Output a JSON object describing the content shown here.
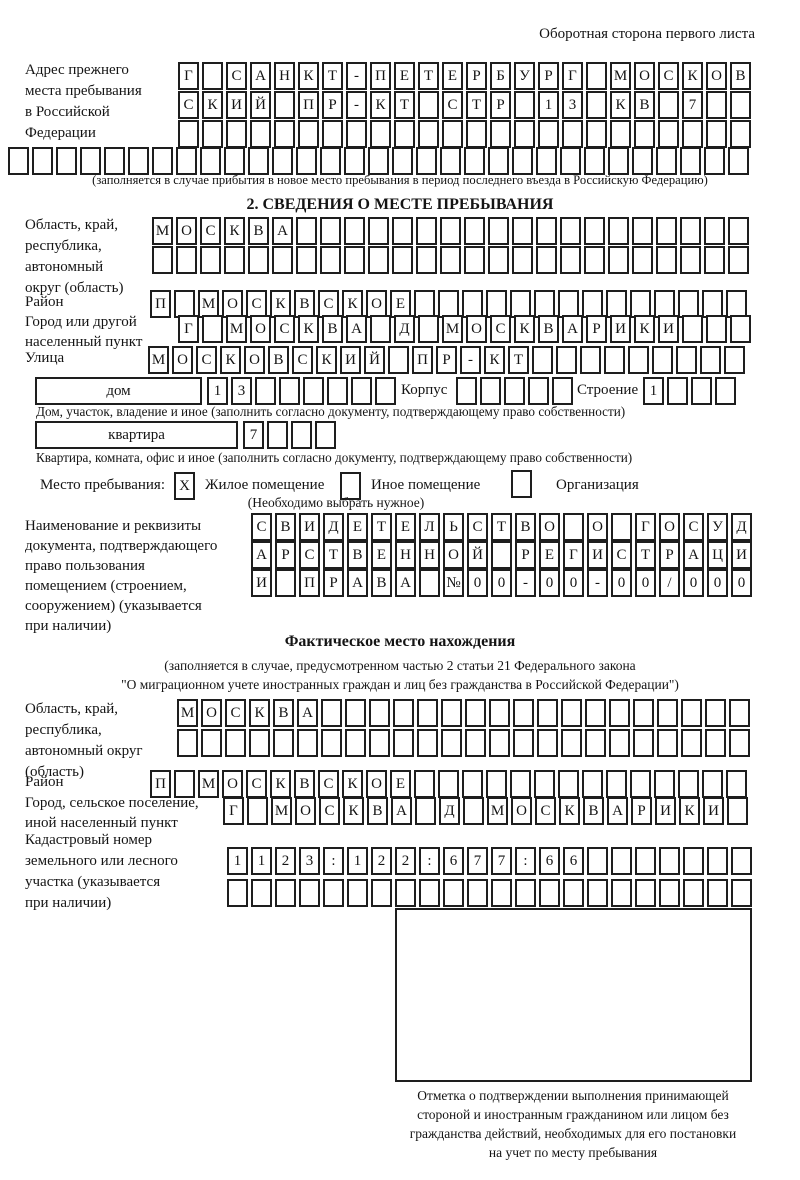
{
  "page": {
    "header_note": "Оборотная сторона первого листа"
  },
  "prev_address": {
    "label": "Адрес прежнего\nместа пребывания\nв Российской\nФедерации",
    "rows": [
      {
        "text": "Г САНКТ-ПЕТЕРБУРГ МОСКОВ",
        "len": 24
      },
      {
        "text": "СКИЙ ПР-КТ СТР 13 КВ 7",
        "len": 24
      },
      {
        "text": "",
        "len": 24
      },
      {
        "text": "",
        "len": 31
      }
    ],
    "caption": "(заполняется в случае прибытия в новое место пребывания в период последнего въезда в Российскую Федерацию)"
  },
  "section2": {
    "title": "2. СВЕДЕНИЯ О МЕСТЕ ПРЕБЫВАНИЯ",
    "region": {
      "label": "Область, край,\nреспублика,\nавтономный\nокруг (область)",
      "rows": [
        {
          "text": "МОСКВА",
          "len": 25
        },
        {
          "text": "",
          "len": 25
        }
      ]
    },
    "district": {
      "label": "Район",
      "row": {
        "text": "П МОСКВСКОЕ",
        "len": 25
      }
    },
    "city": {
      "label": "Город или другой\nнаселенный пункт",
      "row": {
        "text": "Г МОСКВА Д МОСКВАРИКИ",
        "len": 24
      }
    },
    "street": {
      "label": "Улица",
      "row": {
        "text": "МОСКОВСКИЙ ПР-КТ",
        "len": 25
      }
    },
    "house": {
      "box_label": "дом",
      "number": {
        "text": "13",
        "len": 8
      },
      "korpus_label": "Корпус",
      "korpus": {
        "text": "",
        "len": 5
      },
      "stroenie_label": "Строение",
      "stroenie": {
        "text": "1",
        "len": 4
      },
      "caption": "Дом, участок, владение и иное (заполнить согласно документу, подтверждающему право собственности)"
    },
    "apartment": {
      "box_label": "квартира",
      "number": {
        "text": "7",
        "len": 4
      },
      "caption": "Квартира, комната, офис и иное (заполнить согласно документу, подтверждающему право собственности)"
    },
    "stay_type": {
      "label": "Место пребывания:",
      "options": [
        {
          "label": "Жилое помещение",
          "checked": "X"
        },
        {
          "label": "Иное помещение",
          "checked": ""
        },
        {
          "label": "Организация",
          "checked": ""
        }
      ],
      "hint": "(Необходимо выбрать нужное)"
    },
    "document": {
      "label": "Наименование и реквизиты\nдокумента, подтверждающего\nправо пользования\nпомещением (строением,\nсооружением) (указывается\nпри наличии)",
      "rows": [
        {
          "text": "СВИДЕТЕЛЬСТВО О ГОСУД",
          "len": 21
        },
        {
          "text": "АРСТВЕННОЙ РЕГИСТРАЦИ",
          "len": 21
        },
        {
          "text": "И ПРАВА №00-00-00/000",
          "len": 21
        }
      ]
    }
  },
  "actual_location": {
    "title": "Фактическое место нахождения",
    "note": "(заполняется в случае, предусмотренном частью 2 статьи 21 Федерального закона\n\"О миграционном учете иностранных граждан и лиц без гражданства в Российской Федерации\")",
    "region": {
      "label": "Область, край,\nреспублика,\nавтономный округ\n(область)",
      "rows": [
        {
          "text": "МОСКВА",
          "len": 24
        },
        {
          "text": "",
          "len": 24
        }
      ]
    },
    "district": {
      "label": "Район",
      "row": {
        "text": "П МОСКВСКОЕ",
        "len": 25
      }
    },
    "city": {
      "label": "Город, сельское поселение,\nиной населенный пункт",
      "row": {
        "text": "Г МОСКВА Д МОСКВАРИКИ",
        "len": 22
      }
    },
    "cadastre": {
      "label": "Кадастровый номер\nземельного или лесного\nучастка (указывается\nпри наличии)",
      "rows": [
        {
          "text": "1123:122:677:66",
          "len": 22
        },
        {
          "text": "",
          "len": 22
        }
      ]
    }
  },
  "confirmation": {
    "text": "Отметка о подтверждении выполнения принимающей\nстороной и иностранным гражданином или лицом без\nгражданства действий, необходимых для его постановки\nна учет по месту пребывания"
  }
}
